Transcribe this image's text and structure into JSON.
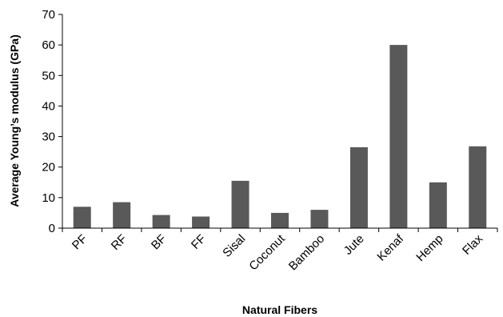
{
  "chart_data": {
    "type": "bar",
    "title": "",
    "xlabel": "Natural Fibers",
    "ylabel": "Average Young’s modulus (GPa)",
    "ylim": [
      0,
      70
    ],
    "yticks": [
      0,
      10,
      20,
      30,
      40,
      50,
      60,
      70
    ],
    "grid": false,
    "legend": "none",
    "bar_color": "#595959",
    "categories": [
      "PF",
      "RF",
      "BF",
      "FF",
      "Sisal",
      "Coconut",
      "Bamboo",
      "Jute",
      "Kenaf",
      "Hemp",
      "Flax"
    ],
    "values": [
      7,
      8.5,
      4.3,
      3.8,
      15.5,
      5,
      6,
      26.5,
      60,
      15,
      26.8
    ]
  }
}
